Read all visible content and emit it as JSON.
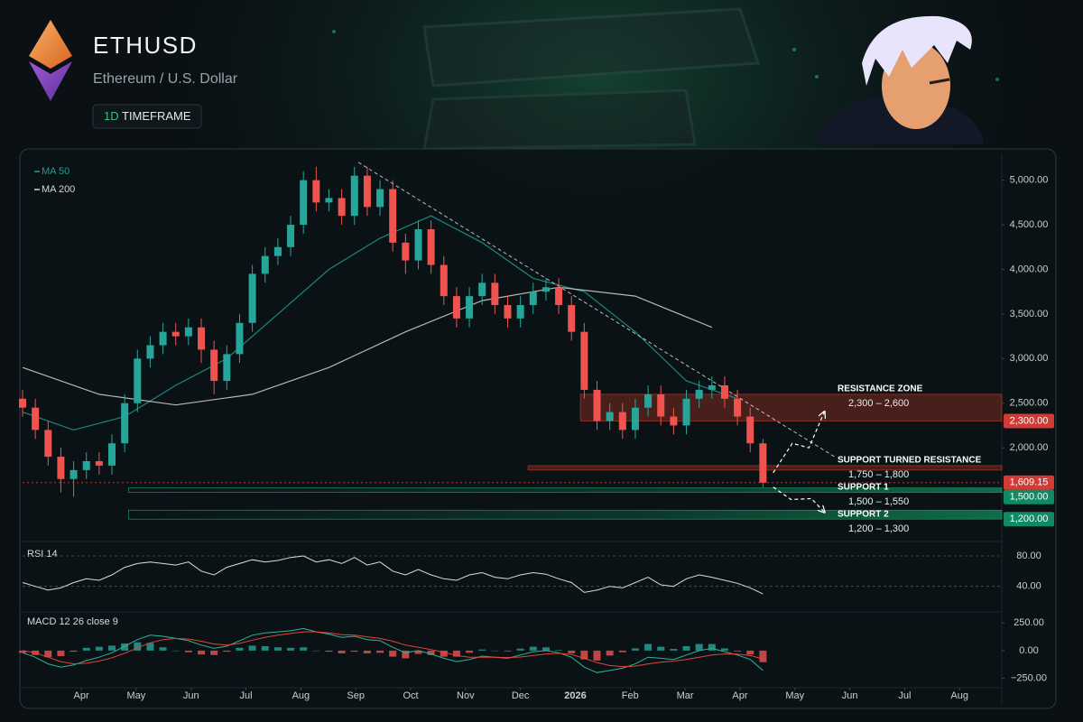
{
  "header": {
    "symbol": "ETHUSD",
    "name": "Ethereum / U.S. Dollar",
    "timeframe": "1D",
    "timeframe_label": "TIMEFRAME"
  },
  "chart_data": [
    {
      "type": "candlestick",
      "x": [
        0,
        1,
        2,
        3,
        4,
        5,
        6,
        7,
        8,
        9,
        10,
        11,
        12,
        13,
        14,
        15,
        16,
        17,
        18,
        19,
        20,
        21,
        22,
        23,
        24,
        25,
        26,
        27,
        28,
        29,
        30,
        31,
        32,
        33,
        34,
        35,
        36,
        37,
        38,
        39,
        40,
        41,
        42,
        43,
        44,
        45,
        46,
        47,
        48,
        49,
        50,
        51,
        52,
        53,
        54,
        55,
        56,
        57,
        58
      ],
      "open": [
        2550,
        2450,
        2200,
        1900,
        1650,
        1750,
        1850,
        1800,
        2050,
        2500,
        3000,
        3150,
        3300,
        3250,
        3350,
        3100,
        2750,
        3050,
        3400,
        3950,
        4150,
        4250,
        4500,
        5000,
        4750,
        4800,
        4600,
        5050,
        4700,
        4900,
        4300,
        4100,
        4450,
        4050,
        3700,
        3450,
        3700,
        3850,
        3600,
        3450,
        3600,
        3750,
        3800,
        3600,
        3300,
        2650,
        2300,
        2400,
        2200,
        2450,
        2600,
        2350,
        2250,
        2550,
        2650,
        2700,
        2550,
        2350,
        2050
      ],
      "high": [
        2650,
        2550,
        2300,
        2000,
        1850,
        1950,
        1950,
        2150,
        2600,
        3100,
        3250,
        3400,
        3400,
        3450,
        3450,
        3200,
        3150,
        3500,
        4050,
        4250,
        4350,
        4600,
        5100,
        5150,
        4900,
        4900,
        5150,
        5150,
        5000,
        5000,
        4400,
        4550,
        4550,
        4150,
        3800,
        3800,
        3950,
        3950,
        3700,
        3700,
        3850,
        3900,
        3900,
        3700,
        3400,
        2750,
        2500,
        2500,
        2550,
        2700,
        2700,
        2450,
        2650,
        2750,
        2800,
        2800,
        2650,
        2450,
        2100
      ],
      "low": [
        2350,
        2100,
        1800,
        1500,
        1450,
        1650,
        1700,
        1700,
        1950,
        2400,
        2900,
        3050,
        3150,
        3150,
        2950,
        2600,
        2650,
        2950,
        3300,
        3850,
        4050,
        4150,
        4400,
        4650,
        4650,
        4500,
        4500,
        4600,
        4600,
        4200,
        3950,
        4000,
        3950,
        3600,
        3350,
        3350,
        3600,
        3500,
        3350,
        3350,
        3500,
        3650,
        3500,
        3200,
        2550,
        2200,
        2200,
        2100,
        2100,
        2350,
        2250,
        2150,
        2150,
        2450,
        2550,
        2450,
        2250,
        1950,
        1560
      ],
      "close": [
        2450,
        2200,
        1900,
        1650,
        1750,
        1850,
        1800,
        2050,
        2500,
        3000,
        3150,
        3300,
        3250,
        3350,
        3100,
        2750,
        3050,
        3400,
        3950,
        4150,
        4250,
        4500,
        5000,
        4750,
        4800,
        4600,
        5050,
        4700,
        4900,
        4300,
        4100,
        4450,
        4050,
        3700,
        3450,
        3700,
        3850,
        3600,
        3450,
        3600,
        3750,
        3800,
        3600,
        3300,
        2650,
        2300,
        2400,
        2200,
        2450,
        2600,
        2350,
        2250,
        2550,
        2650,
        2700,
        2550,
        2350,
        2050,
        1609.15
      ],
      "up_color": "#26a69a",
      "down_color": "#ef5350",
      "xlim": [
        0,
        76
      ],
      "xticks": [
        {
          "value": 4.6,
          "label": "Apr"
        },
        {
          "value": 8.9,
          "label": "May"
        },
        {
          "value": 13.2,
          "label": "Jun"
        },
        {
          "value": 17.5,
          "label": "Jul"
        },
        {
          "value": 21.8,
          "label": "Aug"
        },
        {
          "value": 26.1,
          "label": "Sep"
        },
        {
          "value": 30.4,
          "label": "Oct"
        },
        {
          "value": 34.7,
          "label": "Nov"
        },
        {
          "value": 39.0,
          "label": "Dec"
        },
        {
          "value": 43.3,
          "label": "2026"
        },
        {
          "value": 47.6,
          "label": "Feb"
        },
        {
          "value": 51.9,
          "label": "Mar"
        },
        {
          "value": 56.2,
          "label": "Apr"
        },
        {
          "value": 60.5,
          "label": "May"
        },
        {
          "value": 64.8,
          "label": "Jun"
        },
        {
          "value": 69.1,
          "label": "Jul"
        },
        {
          "value": 73.4,
          "label": "Aug"
        }
      ],
      "ylim": [
        1000,
        5300
      ],
      "yticks": [
        {
          "value": 1500,
          "label": "1,500.00"
        },
        {
          "value": 2000,
          "label": "2,000.00"
        },
        {
          "value": 2500,
          "label": "2,500.00"
        },
        {
          "value": 3000,
          "label": "3,000.00"
        },
        {
          "value": 3500,
          "label": "3,500.00"
        },
        {
          "value": 4000,
          "label": "4,000.00"
        },
        {
          "value": 4500,
          "label": "4,500.00"
        },
        {
          "value": 5000,
          "label": "5,000.00"
        }
      ],
      "moving_averages": [
        {
          "name": "MA 50",
          "color": "#1f9e8f",
          "x": [
            0,
            4,
            8,
            12,
            16,
            20,
            24,
            28,
            32,
            36,
            40,
            44,
            48,
            52,
            56
          ],
          "values": [
            2400,
            2200,
            2350,
            2700,
            3000,
            3500,
            4000,
            4350,
            4600,
            4300,
            3900,
            3750,
            3300,
            2750,
            2550
          ]
        },
        {
          "name": "MA 200",
          "color": "#d8d4cc",
          "x": [
            0,
            6,
            12,
            18,
            24,
            30,
            36,
            42,
            48,
            54
          ],
          "values": [
            2900,
            2600,
            2480,
            2600,
            2900,
            3300,
            3650,
            3800,
            3700,
            3350
          ]
        }
      ],
      "trendline": {
        "color": "#e6e6e6",
        "x": [
          26.3,
          63.6
        ],
        "values": [
          5200,
          1900
        ]
      },
      "zones": [
        {
          "name": "RESISTANCE ZONE",
          "range": "2,300 – 2,600",
          "low": 2300,
          "high": 2600,
          "x_start": 43.7,
          "color": "#c0392b",
          "fade": false
        },
        {
          "name": "SUPPORT TURNED RESISTANCE",
          "range": "1,750 – 1,800",
          "low": 1750,
          "high": 1800,
          "x_start": 39.6,
          "color": "#c0392b",
          "fade": false
        },
        {
          "name": "SUPPORT 1",
          "range": "1,500 – 1,550",
          "low": 1500,
          "high": 1550,
          "x_start": 8.3,
          "color": "#14a86e",
          "fade": true
        },
        {
          "name": "SUPPORT 2",
          "range": "1,200 – 1,300",
          "low": 1200,
          "high": 1300,
          "x_start": 8.3,
          "color": "#14a86e",
          "fade": true
        }
      ],
      "price_labels": [
        {
          "value": 2300,
          "label": "2,300.00",
          "color": "#d23a35"
        },
        {
          "value": 1609.15,
          "label": "1,609.15",
          "color": "#d23a35",
          "style": "dotted"
        },
        {
          "value": 1500,
          "label": "1,500.00",
          "color": "#0f8a63"
        },
        {
          "value": 1200,
          "label": "1,200.00",
          "color": "#0f8a63"
        }
      ],
      "projections": [
        {
          "color": "#ffffff",
          "x": [
            58.8,
            60.3,
            61.6,
            62.8
          ],
          "values": [
            1720,
            2050,
            2000,
            2400
          ]
        },
        {
          "color": "#ffffff",
          "x": [
            58.8,
            60.2,
            61.8,
            62.8
          ],
          "values": [
            1560,
            1420,
            1430,
            1280
          ]
        }
      ]
    },
    {
      "type": "line",
      "title": "RSI 14",
      "color": "#d9dde0",
      "values": [
        45,
        40,
        35,
        38,
        45,
        50,
        48,
        55,
        65,
        70,
        72,
        70,
        68,
        72,
        60,
        55,
        65,
        70,
        75,
        72,
        74,
        78,
        80,
        72,
        75,
        70,
        78,
        68,
        72,
        60,
        55,
        62,
        55,
        50,
        48,
        55,
        58,
        52,
        50,
        55,
        58,
        56,
        50,
        45,
        32,
        35,
        40,
        38,
        45,
        52,
        42,
        40,
        50,
        55,
        52,
        48,
        44,
        38,
        30
      ],
      "ylim": [
        10,
        93
      ],
      "yticks": [
        {
          "value": 40,
          "label": "40.00"
        },
        {
          "value": 80,
          "label": "80.00"
        }
      ]
    },
    {
      "type": "macd",
      "title": "MACD 12 26 close 9",
      "macd_color": "#2fb39a",
      "signal_color": "#e0453a",
      "up_color": "#26a69a",
      "down_color": "#ef5350",
      "macd": [
        -20,
        -60,
        -120,
        -150,
        -130,
        -90,
        -60,
        -20,
        40,
        100,
        140,
        130,
        110,
        90,
        50,
        20,
        40,
        90,
        140,
        160,
        170,
        180,
        200,
        170,
        150,
        120,
        130,
        100,
        90,
        30,
        -20,
        0,
        -30,
        -70,
        -100,
        -80,
        -50,
        -60,
        -70,
        -40,
        -10,
        0,
        -20,
        -60,
        -150,
        -200,
        -180,
        -160,
        -120,
        -60,
        -70,
        -80,
        -40,
        0,
        20,
        -10,
        -40,
        -80,
        -180
      ],
      "signal": [
        0,
        -20,
        -60,
        -100,
        -120,
        -115,
        -95,
        -65,
        -25,
        25,
        70,
        100,
        110,
        105,
        85,
        60,
        50,
        65,
        95,
        120,
        140,
        155,
        170,
        170,
        160,
        145,
        140,
        125,
        110,
        85,
        50,
        30,
        10,
        -15,
        -45,
        -60,
        -60,
        -60,
        -63,
        -58,
        -45,
        -30,
        -25,
        -35,
        -70,
        -110,
        -135,
        -145,
        -140,
        -120,
        -105,
        -95,
        -80,
        -60,
        -40,
        -30,
        -32,
        -45,
        -75
      ],
      "histogram": [
        -20,
        -40,
        -60,
        -50,
        -10,
        25,
        35,
        45,
        65,
        75,
        70,
        30,
        0,
        -15,
        -35,
        -40,
        -10,
        25,
        45,
        40,
        30,
        25,
        30,
        0,
        -10,
        -25,
        -10,
        -25,
        -20,
        -55,
        -70,
        -30,
        -40,
        -55,
        -55,
        -20,
        10,
        0,
        -7,
        18,
        35,
        30,
        5,
        -25,
        -80,
        -90,
        -45,
        -15,
        20,
        60,
        35,
        15,
        40,
        60,
        60,
        20,
        -8,
        -35,
        -105
      ],
      "ylim": [
        -320,
        310
      ],
      "yticks": [
        {
          "value": 250,
          "label": "250.00"
        },
        {
          "value": 0,
          "label": "0.00"
        },
        {
          "value": -250,
          "label": "−250.00"
        }
      ]
    }
  ]
}
